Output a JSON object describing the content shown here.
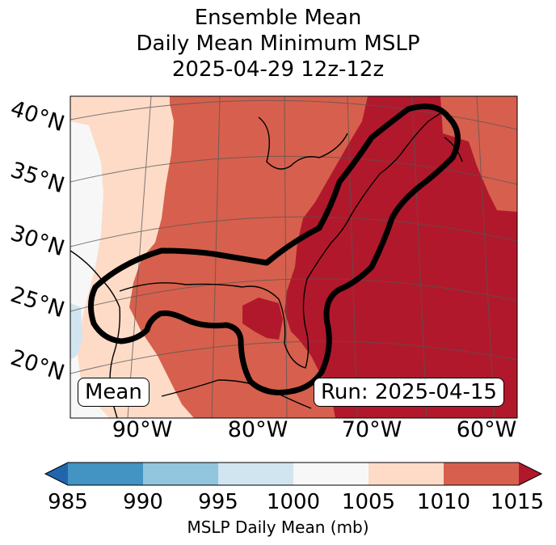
{
  "title": {
    "line1": "Ensemble Mean",
    "line2": "Daily Mean Minimum MSLP",
    "line3": "2025-04-29 12z-12z"
  },
  "map": {
    "lat_labels": [
      "40°N",
      "35°N",
      "30°N",
      "25°N",
      "20°N"
    ],
    "lon_labels": [
      "90°W",
      "80°W",
      "70°W",
      "60°W"
    ],
    "mean_box": "Mean",
    "run_box": "Run: 2025-04-15",
    "outline_color": "#000000"
  },
  "colorbar": {
    "label": "MSLP Daily Mean (mb)",
    "ticks": [
      "985",
      "990",
      "995",
      "1000",
      "1005",
      "1010",
      "1015"
    ],
    "colors": [
      "#2166ac",
      "#4393c3",
      "#92c5de",
      "#d1e5f0",
      "#f7f7f7",
      "#fddbc7",
      "#d6604d",
      "#b2182b"
    ]
  },
  "colors": {
    "c995_1000": "#d1e5f0",
    "c1000_1005": "#f7f7f7",
    "c1005_1010": "#fddbc7",
    "c1010_1015": "#d6604d",
    "c_over_1015": "#b2182b"
  }
}
